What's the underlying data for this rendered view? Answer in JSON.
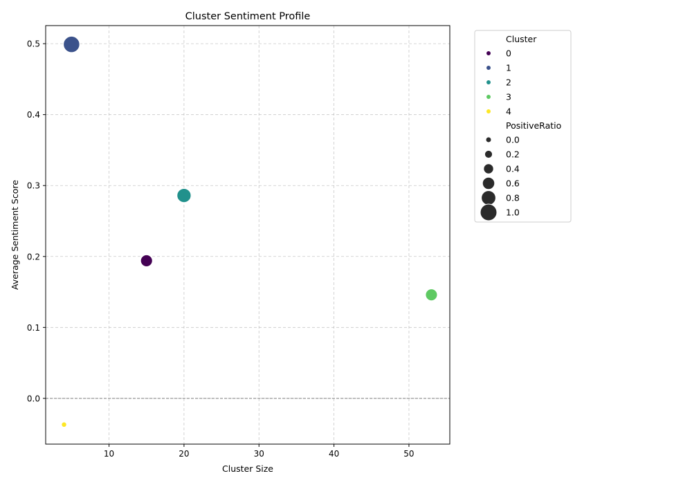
{
  "chart_data": {
    "type": "scatter",
    "title": "Cluster Sentiment Profile",
    "xlabel": "Cluster Size",
    "ylabel": "Average Sentiment Score",
    "xlim": [
      1.55,
      55.45
    ],
    "ylim": [
      -0.0645,
      0.5255
    ],
    "xticks": [
      "10",
      "20",
      "30",
      "40",
      "50"
    ],
    "xtick_values": [
      10,
      20,
      30,
      40,
      50
    ],
    "yticks": [
      "0.0",
      "0.1",
      "0.2",
      "0.3",
      "0.4",
      "0.5"
    ],
    "ytick_values": [
      0.0,
      0.1,
      0.2,
      0.3,
      0.4,
      0.5
    ],
    "grid": true,
    "reference_line_y": 0,
    "points": [
      {
        "cluster": "0",
        "x": 15,
        "y": 0.194,
        "positive_ratio": 0.6,
        "color": "#440154"
      },
      {
        "cluster": "1",
        "x": 5,
        "y": 0.499,
        "positive_ratio": 1.0,
        "color": "#3b528b"
      },
      {
        "cluster": "2",
        "x": 20,
        "y": 0.286,
        "positive_ratio": 0.8,
        "color": "#21918c"
      },
      {
        "cluster": "3",
        "x": 53,
        "y": 0.146,
        "positive_ratio": 0.6,
        "color": "#5ec962"
      },
      {
        "cluster": "4",
        "x": 4,
        "y": -0.037,
        "positive_ratio": 0.0,
        "color": "#fde725"
      }
    ],
    "legend": {
      "placement": "outside-right",
      "hue_title": "Cluster",
      "hue_entries": [
        {
          "label": "0",
          "color": "#440154"
        },
        {
          "label": "1",
          "color": "#3b528b"
        },
        {
          "label": "2",
          "color": "#21918c"
        },
        {
          "label": "3",
          "color": "#5ec962"
        },
        {
          "label": "4",
          "color": "#fde725"
        }
      ],
      "size_title": "PositiveRatio",
      "size_entries": [
        {
          "label": "0.0",
          "value": 0.0
        },
        {
          "label": "0.2",
          "value": 0.2
        },
        {
          "label": "0.4",
          "value": 0.4
        },
        {
          "label": "0.6",
          "value": 0.6
        },
        {
          "label": "0.8",
          "value": 0.8
        },
        {
          "label": "1.0",
          "value": 1.0
        }
      ]
    }
  }
}
